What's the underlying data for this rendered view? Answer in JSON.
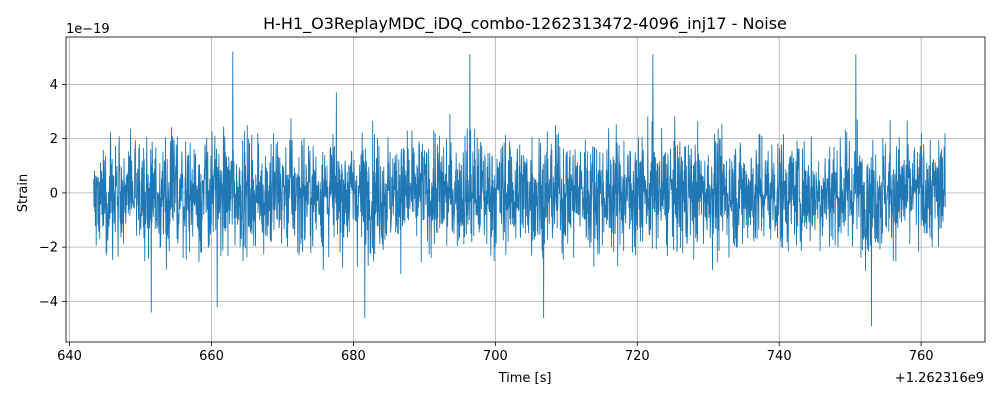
{
  "chart_data": {
    "type": "line",
    "title": "H-H1_O3ReplayMDC_iDQ_combo-1262313472-4096_inj17 - Noise",
    "xlabel": "Time [s]",
    "ylabel": "Strain",
    "x_offset_label": "+1.262316e9",
    "y_scale_label": "1e−19",
    "xlim": [
      639.5,
      769.0
    ],
    "ylim": [
      -5.5,
      5.75
    ],
    "x_ticks": [
      640,
      660,
      680,
      700,
      720,
      740,
      760
    ],
    "x_tick_labels": [
      "640",
      "660",
      "680",
      "700",
      "720",
      "740",
      "760"
    ],
    "y_ticks": [
      -4,
      -2,
      0,
      2,
      4
    ],
    "y_tick_labels": [
      "−4",
      "−2",
      "0",
      "2",
      "4"
    ],
    "grid": true,
    "legend": "none",
    "series": [
      {
        "color": "#1f77b4",
        "t_start": 643.4,
        "t_end": 763.4,
        "typical_abs": 1.4,
        "peaks": [
          {
            "t": 663.0,
            "v": 5.2
          },
          {
            "t": 696.4,
            "v": 5.1
          },
          {
            "t": 722.2,
            "v": 5.1
          },
          {
            "t": 750.8,
            "v": 5.1
          },
          {
            "t": 753.0,
            "v": -4.9
          },
          {
            "t": 706.8,
            "v": -4.6
          },
          {
            "t": 651.5,
            "v": -4.4
          },
          {
            "t": 681.6,
            "v": -4.6
          },
          {
            "t": 660.8,
            "v": -4.2
          }
        ]
      }
    ]
  }
}
